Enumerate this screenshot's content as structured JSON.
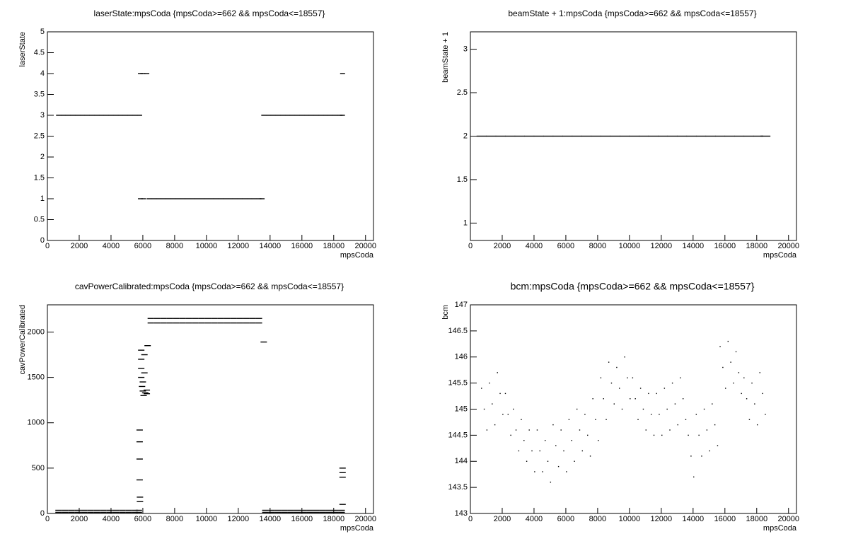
{
  "chart_data": [
    {
      "type": "scatter",
      "title": "laserState:mpsCoda {mpsCoda>=662 && mpsCoda<=18557}",
      "x_label": "mpsCoda",
      "y_label": "laserState",
      "color": "#000000",
      "xlim": [
        0,
        20500
      ],
      "ylim": [
        0,
        5
      ],
      "xticks": [
        0,
        2000,
        4000,
        6000,
        8000,
        10000,
        12000,
        14000,
        16000,
        18000,
        20000
      ],
      "yticks": [
        0,
        0.5,
        1,
        1.5,
        2,
        2.5,
        3,
        3.5,
        4,
        4.5,
        5
      ],
      "x": [
        700,
        1000,
        1300,
        1600,
        1900,
        2200,
        2500,
        2800,
        3100,
        3400,
        3700,
        4000,
        4300,
        4600,
        4900,
        5200,
        5500,
        5800,
        5850,
        6000,
        6250,
        5850,
        6050,
        6400,
        6700,
        7000,
        7300,
        7600,
        7900,
        8200,
        8500,
        8800,
        9100,
        9400,
        9700,
        10000,
        10300,
        10600,
        10900,
        11200,
        11500,
        11800,
        12100,
        12400,
        12700,
        13000,
        13300,
        13500,
        13600,
        13900,
        14200,
        14500,
        14800,
        15100,
        15400,
        15700,
        16000,
        16300,
        16600,
        16900,
        17200,
        17500,
        17800,
        18100,
        18400,
        18550,
        18557
      ],
      "y": [
        3,
        3,
        3,
        3,
        3,
        3,
        3,
        3,
        3,
        3,
        3,
        3,
        3,
        3,
        3,
        3,
        3,
        3,
        4,
        4,
        4,
        1,
        1,
        1,
        1,
        1,
        1,
        1,
        1,
        1,
        1,
        1,
        1,
        1,
        1,
        1,
        1,
        1,
        1,
        1,
        1,
        1,
        1,
        1,
        1,
        1,
        1,
        1,
        3,
        3,
        3,
        3,
        3,
        3,
        3,
        3,
        3,
        3,
        3,
        3,
        3,
        3,
        3,
        3,
        3,
        3,
        4
      ]
    },
    {
      "type": "scatter",
      "title": "beamState + 1:mpsCoda {mpsCoda>=662 && mpsCoda<=18557}",
      "x_label": "mpsCoda",
      "y_label": "beamState + 1",
      "color": "#000000",
      "xlim": [
        0,
        20500
      ],
      "ylim": [
        0.8,
        3.2
      ],
      "xticks": [
        0,
        2000,
        4000,
        6000,
        8000,
        10000,
        12000,
        14000,
        16000,
        18000,
        20000
      ],
      "yticks": [
        1,
        1.5,
        2,
        2.5,
        3
      ],
      "x": [
        700,
        1300,
        1900,
        2500,
        3100,
        3700,
        4300,
        4900,
        5500,
        6100,
        6700,
        7300,
        7900,
        8500,
        9100,
        9700,
        10300,
        10900,
        11500,
        12100,
        12700,
        13300,
        13900,
        14500,
        15100,
        15700,
        16300,
        16900,
        17500,
        18100,
        18550
      ],
      "y": [
        2,
        2,
        2,
        2,
        2,
        2,
        2,
        2,
        2,
        2,
        2,
        2,
        2,
        2,
        2,
        2,
        2,
        2,
        2,
        2,
        2,
        2,
        2,
        2,
        2,
        2,
        2,
        2,
        2,
        2,
        2
      ]
    },
    {
      "type": "scatter",
      "title": "cavPowerCalibrated:mpsCoda {mpsCoda>=662 && mpsCoda<=18557}",
      "x_label": "mpsCoda",
      "y_label": "cavPowerCalibrated",
      "color": "#000000",
      "xlim": [
        0,
        20500
      ],
      "ylim": [
        0,
        2300
      ],
      "xticks": [
        0,
        2000,
        4000,
        6000,
        8000,
        10000,
        12000,
        14000,
        16000,
        18000,
        20000
      ],
      "yticks": [
        0,
        500,
        1000,
        1500,
        2000
      ],
      "x": [
        700,
        1100,
        1500,
        1900,
        2300,
        2700,
        3100,
        3500,
        3900,
        4300,
        4700,
        5100,
        5500,
        5750,
        700,
        1100,
        1500,
        1900,
        2300,
        2700,
        3100,
        3500,
        3900,
        4300,
        4700,
        5100,
        5500,
        5750,
        5800,
        5800,
        5800,
        5800,
        5820,
        5820,
        5900,
        5900,
        5900,
        5900,
        5950,
        6000,
        6000,
        6050,
        6100,
        6100,
        6150,
        6250,
        6250,
        6300,
        6500,
        6900,
        7300,
        7700,
        8100,
        8500,
        8900,
        9300,
        9700,
        10100,
        10500,
        10900,
        11300,
        11700,
        12100,
        12500,
        12900,
        13300,
        6500,
        6900,
        7300,
        7700,
        8100,
        8500,
        8900,
        9300,
        9700,
        10100,
        10500,
        10900,
        11300,
        11700,
        12100,
        12500,
        12900,
        13300,
        13600,
        13700,
        14100,
        14500,
        14900,
        15300,
        15700,
        16100,
        16500,
        16900,
        17300,
        17700,
        18100,
        18500,
        13700,
        14100,
        14500,
        14900,
        15300,
        15700,
        16100,
        16500,
        16900,
        17300,
        17700,
        18100,
        18500,
        18557,
        18557,
        18557,
        18557
      ],
      "y": [
        35,
        35,
        35,
        35,
        35,
        35,
        35,
        35,
        35,
        35,
        35,
        35,
        35,
        35,
        12,
        12,
        12,
        12,
        12,
        12,
        12,
        12,
        12,
        12,
        12,
        12,
        12,
        12,
        920,
        790,
        600,
        370,
        180,
        130,
        1800,
        1700,
        1600,
        1500,
        1400,
        1450,
        1350,
        1300,
        1750,
        1550,
        1330,
        1360,
        1320,
        1850,
        2150,
        2150,
        2150,
        2150,
        2150,
        2150,
        2150,
        2150,
        2150,
        2150,
        2150,
        2150,
        2150,
        2150,
        2150,
        2150,
        2150,
        2150,
        2100,
        2100,
        2100,
        2100,
        2100,
        2100,
        2100,
        2100,
        2100,
        2100,
        2100,
        2100,
        2100,
        2100,
        2100,
        2100,
        2100,
        2100,
        1890,
        35,
        35,
        35,
        35,
        35,
        35,
        35,
        35,
        35,
        35,
        35,
        35,
        35,
        12,
        12,
        12,
        12,
        12,
        12,
        12,
        12,
        12,
        12,
        12,
        12,
        12,
        500,
        450,
        400,
        100
      ]
    },
    {
      "type": "scatter",
      "title": "bcm:mpsCoda {mpsCoda>=662 && mpsCoda<=18557}",
      "x_label": "mpsCoda",
      "y_label": "bcm",
      "color": "#000000",
      "xlim": [
        0,
        20500
      ],
      "ylim": [
        143,
        147
      ],
      "xticks": [
        0,
        2000,
        4000,
        6000,
        8000,
        10000,
        12000,
        14000,
        16000,
        18000,
        20000
      ],
      "yticks": [
        143,
        143.5,
        144,
        144.5,
        145,
        145.5,
        146,
        146.5,
        147
      ],
      "x": [
        700,
        870,
        1040,
        1200,
        1370,
        1540,
        1700,
        1870,
        2040,
        2200,
        2370,
        2540,
        2700,
        2870,
        3040,
        3200,
        3370,
        3540,
        3700,
        3870,
        4040,
        4200,
        4370,
        4540,
        4700,
        4870,
        5040,
        5200,
        5370,
        5540,
        5700,
        5870,
        6040,
        6200,
        6370,
        6540,
        6700,
        6870,
        7040,
        7200,
        7370,
        7540,
        7700,
        7870,
        8040,
        8200,
        8370,
        8540,
        8700,
        8870,
        9040,
        9200,
        9370,
        9540,
        9700,
        9870,
        10040,
        10200,
        10370,
        10540,
        10700,
        10870,
        11040,
        11200,
        11370,
        11540,
        11700,
        11870,
        12040,
        12200,
        12370,
        12540,
        12700,
        12870,
        13040,
        13200,
        13370,
        13540,
        13700,
        13870,
        14040,
        14200,
        14370,
        14540,
        14700,
        14870,
        15040,
        15200,
        15370,
        15540,
        15700,
        15870,
        16040,
        16200,
        16370,
        16540,
        16700,
        16870,
        17040,
        17200,
        17370,
        17540,
        17700,
        17870,
        18040,
        18200,
        18370,
        18540
      ],
      "y": [
        145.4,
        145.0,
        144.6,
        145.5,
        145.1,
        144.7,
        145.7,
        145.3,
        144.9,
        145.3,
        144.9,
        144.5,
        145.0,
        144.6,
        144.2,
        144.8,
        144.4,
        144.0,
        144.6,
        144.2,
        143.8,
        144.6,
        144.2,
        143.8,
        144.4,
        144.0,
        143.6,
        144.7,
        144.3,
        143.9,
        144.6,
        144.2,
        143.8,
        144.8,
        144.4,
        144.0,
        145.0,
        144.6,
        144.2,
        144.9,
        144.5,
        144.1,
        145.2,
        144.8,
        144.4,
        145.6,
        145.2,
        144.8,
        145.9,
        145.5,
        145.1,
        145.8,
        145.4,
        145.0,
        146.0,
        145.6,
        145.2,
        145.6,
        145.2,
        144.8,
        145.4,
        145.0,
        144.6,
        145.3,
        144.9,
        144.5,
        145.3,
        144.9,
        144.5,
        145.4,
        145.0,
        144.6,
        145.5,
        145.1,
        144.7,
        145.6,
        145.2,
        144.8,
        144.5,
        144.1,
        143.7,
        144.9,
        144.5,
        144.1,
        145.0,
        144.6,
        144.2,
        145.1,
        144.7,
        144.3,
        146.2,
        145.8,
        145.4,
        146.3,
        145.9,
        145.5,
        146.1,
        145.7,
        145.3,
        145.6,
        145.2,
        144.8,
        145.5,
        145.1,
        144.7,
        145.7,
        145.3,
        144.9
      ]
    }
  ]
}
